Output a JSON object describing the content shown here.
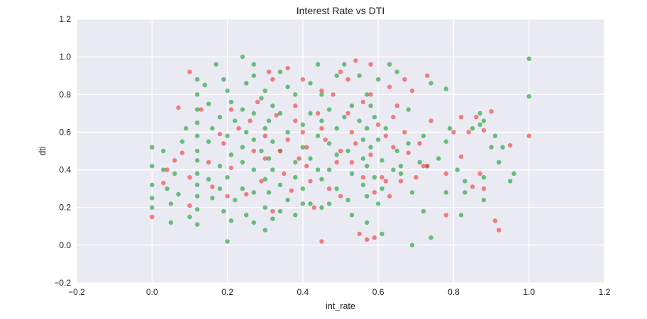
{
  "chart_data": {
    "type": "scatter",
    "title": "Interest Rate vs DTI",
    "xlabel": "int_rate",
    "ylabel": "dti",
    "xlim": [
      -0.2,
      1.2
    ],
    "ylim": [
      -0.2,
      1.2
    ],
    "xticks": [
      "−0.2",
      "0.0",
      "0.2",
      "0.4",
      "0.6",
      "0.8",
      "1.0",
      "1.2"
    ],
    "yticks": [
      "−0.2",
      "0.0",
      "0.2",
      "0.4",
      "0.6",
      "0.8",
      "1.0",
      "1.2"
    ],
    "grid": true,
    "legend": "none",
    "series": [
      {
        "color": "#22a23c",
        "points": [
          [
            0.0,
            0.52
          ],
          [
            0.0,
            0.42
          ],
          [
            0.0,
            0.32
          ],
          [
            0.0,
            0.25
          ],
          [
            0.0,
            0.2
          ],
          [
            0.03,
            0.5
          ],
          [
            0.03,
            0.4
          ],
          [
            0.04,
            0.3
          ],
          [
            0.05,
            0.22
          ],
          [
            0.05,
            0.12
          ],
          [
            0.06,
            0.38
          ],
          [
            0.07,
            0.27
          ],
          [
            0.08,
            0.55
          ],
          [
            0.09,
            0.62
          ],
          [
            0.1,
            0.15
          ],
          [
            0.12,
            0.88
          ],
          [
            0.12,
            0.8
          ],
          [
            0.12,
            0.72
          ],
          [
            0.12,
            0.65
          ],
          [
            0.12,
            0.58
          ],
          [
            0.12,
            0.5
          ],
          [
            0.12,
            0.45
          ],
          [
            0.12,
            0.38
          ],
          [
            0.12,
            0.32
          ],
          [
            0.12,
            0.26
          ],
          [
            0.12,
            0.19
          ],
          [
            0.12,
            0.11
          ],
          [
            0.14,
            0.85
          ],
          [
            0.15,
            0.75
          ],
          [
            0.15,
            0.55
          ],
          [
            0.15,
            0.35
          ],
          [
            0.16,
            0.62
          ],
          [
            0.16,
            0.25
          ],
          [
            0.17,
            0.96
          ],
          [
            0.18,
            0.68
          ],
          [
            0.18,
            0.42
          ],
          [
            0.18,
            0.3
          ],
          [
            0.19,
            0.88
          ],
          [
            0.19,
            0.18
          ],
          [
            0.2,
            0.82
          ],
          [
            0.2,
            0.58
          ],
          [
            0.2,
            0.36
          ],
          [
            0.2,
            0.02
          ],
          [
            0.21,
            0.76
          ],
          [
            0.21,
            0.48
          ],
          [
            0.21,
            0.13
          ],
          [
            0.22,
            0.66
          ],
          [
            0.22,
            0.24
          ],
          [
            0.24,
            1.0
          ],
          [
            0.24,
            0.72
          ],
          [
            0.24,
            0.52
          ],
          [
            0.24,
            0.44
          ],
          [
            0.24,
            0.3
          ],
          [
            0.25,
            0.86
          ],
          [
            0.25,
            0.6
          ],
          [
            0.25,
            0.16
          ],
          [
            0.27,
            0.96
          ],
          [
            0.27,
            0.9
          ],
          [
            0.27,
            0.7
          ],
          [
            0.27,
            0.56
          ],
          [
            0.27,
            0.4
          ],
          [
            0.27,
            0.28
          ],
          [
            0.27,
            0.12
          ],
          [
            0.29,
            0.78
          ],
          [
            0.29,
            0.5
          ],
          [
            0.3,
            0.82
          ],
          [
            0.3,
            0.62
          ],
          [
            0.3,
            0.35
          ],
          [
            0.3,
            0.2
          ],
          [
            0.3,
            0.08
          ],
          [
            0.31,
            0.66
          ],
          [
            0.31,
            0.46
          ],
          [
            0.31,
            0.28
          ],
          [
            0.32,
            0.74
          ],
          [
            0.32,
            0.55
          ],
          [
            0.32,
            0.4
          ],
          [
            0.32,
            0.14
          ],
          [
            0.34,
            0.92
          ],
          [
            0.34,
            0.7
          ],
          [
            0.34,
            0.5
          ],
          [
            0.34,
            0.32
          ],
          [
            0.34,
            0.18
          ],
          [
            0.36,
            0.84
          ],
          [
            0.36,
            0.6
          ],
          [
            0.36,
            0.24
          ],
          [
            0.38,
            0.8
          ],
          [
            0.38,
            0.44
          ],
          [
            0.38,
            0.36
          ],
          [
            0.38,
            0.16
          ],
          [
            0.4,
            0.64
          ],
          [
            0.4,
            0.52
          ],
          [
            0.4,
            0.3
          ],
          [
            0.4,
            0.22
          ],
          [
            0.42,
            0.86
          ],
          [
            0.42,
            0.7
          ],
          [
            0.42,
            0.46
          ],
          [
            0.42,
            0.22
          ],
          [
            0.44,
            0.96
          ],
          [
            0.44,
            0.58
          ],
          [
            0.44,
            0.4
          ],
          [
            0.45,
            0.8
          ],
          [
            0.45,
            0.66
          ],
          [
            0.45,
            0.35
          ],
          [
            0.45,
            0.2
          ],
          [
            0.47,
            0.72
          ],
          [
            0.47,
            0.54
          ],
          [
            0.47,
            0.4
          ],
          [
            0.47,
            0.22
          ],
          [
            0.49,
            0.9
          ],
          [
            0.49,
            0.62
          ],
          [
            0.49,
            0.48
          ],
          [
            0.49,
            0.3
          ],
          [
            0.51,
            0.96
          ],
          [
            0.51,
            0.68
          ],
          [
            0.52,
            0.5
          ],
          [
            0.52,
            0.24
          ],
          [
            0.53,
            0.74
          ],
          [
            0.53,
            0.38
          ],
          [
            0.53,
            0.16
          ],
          [
            0.55,
            0.9
          ],
          [
            0.55,
            0.66
          ],
          [
            0.56,
            0.56
          ],
          [
            0.56,
            0.46
          ],
          [
            0.56,
            0.32
          ],
          [
            0.57,
            0.8
          ],
          [
            0.57,
            0.62
          ],
          [
            0.57,
            0.42
          ],
          [
            0.57,
            0.26
          ],
          [
            0.57,
            0.12
          ],
          [
            0.58,
            0.74
          ],
          [
            0.58,
            0.52
          ],
          [
            0.59,
            0.68
          ],
          [
            0.59,
            0.36
          ],
          [
            0.6,
            0.88
          ],
          [
            0.6,
            0.56
          ],
          [
            0.6,
            0.22
          ],
          [
            0.61,
            0.45
          ],
          [
            0.61,
            0.3
          ],
          [
            0.61,
            0.06
          ],
          [
            0.62,
            0.62
          ],
          [
            0.63,
            0.96
          ],
          [
            0.64,
            0.4
          ],
          [
            0.65,
            0.92
          ],
          [
            0.65,
            0.5
          ],
          [
            0.66,
            0.42
          ],
          [
            0.66,
            0.38
          ],
          [
            0.68,
            0.72
          ],
          [
            0.68,
            0.54
          ],
          [
            0.69,
            0.28
          ],
          [
            0.69,
            0.0
          ],
          [
            0.71,
            0.44
          ],
          [
            0.72,
            0.58
          ],
          [
            0.72,
            0.18
          ],
          [
            0.73,
            0.42
          ],
          [
            0.74,
            0.86
          ],
          [
            0.74,
            0.04
          ],
          [
            0.76,
            0.46
          ],
          [
            0.78,
            0.83
          ],
          [
            0.78,
            0.55
          ],
          [
            0.78,
            0.28
          ],
          [
            0.79,
            0.62
          ],
          [
            0.81,
            0.4
          ],
          [
            0.82,
            0.16
          ],
          [
            0.83,
            0.34
          ],
          [
            0.83,
            0.28
          ],
          [
            0.85,
            0.62
          ],
          [
            0.87,
            0.7
          ],
          [
            0.87,
            0.64
          ],
          [
            0.88,
            0.66
          ],
          [
            0.88,
            0.36
          ],
          [
            0.88,
            0.24
          ],
          [
            0.9,
            0.52
          ],
          [
            0.91,
            0.58
          ],
          [
            0.92,
            0.44
          ],
          [
            0.93,
            0.52
          ],
          [
            0.95,
            0.34
          ],
          [
            0.96,
            0.38
          ],
          [
            1.0,
            0.99
          ],
          [
            1.0,
            0.79
          ]
        ]
      },
      {
        "color": "#f04040",
        "points": [
          [
            0.0,
            0.15
          ],
          [
            0.03,
            0.33
          ],
          [
            0.04,
            0.4
          ],
          [
            0.06,
            0.45
          ],
          [
            0.07,
            0.73
          ],
          [
            0.08,
            0.49
          ],
          [
            0.1,
            0.36
          ],
          [
            0.1,
            0.21
          ],
          [
            0.1,
            0.92
          ],
          [
            0.13,
            0.72
          ],
          [
            0.15,
            0.44
          ],
          [
            0.16,
            0.31
          ],
          [
            0.18,
            0.59
          ],
          [
            0.19,
            0.54
          ],
          [
            0.2,
            0.26
          ],
          [
            0.21,
            0.72
          ],
          [
            0.21,
            0.41
          ],
          [
            0.23,
            0.62
          ],
          [
            0.25,
            0.27
          ],
          [
            0.26,
            0.66
          ],
          [
            0.27,
            0.5
          ],
          [
            0.28,
            0.76
          ],
          [
            0.29,
            0.34
          ],
          [
            0.3,
            0.46
          ],
          [
            0.3,
            0.58
          ],
          [
            0.31,
            0.92
          ],
          [
            0.32,
            0.88
          ],
          [
            0.32,
            0.18
          ],
          [
            0.33,
            0.69
          ],
          [
            0.34,
            0.5
          ],
          [
            0.35,
            0.38
          ],
          [
            0.36,
            0.94
          ],
          [
            0.36,
            0.56
          ],
          [
            0.37,
            0.29
          ],
          [
            0.38,
            0.74
          ],
          [
            0.38,
            0.66
          ],
          [
            0.39,
            0.46
          ],
          [
            0.4,
            0.88
          ],
          [
            0.4,
            0.6
          ],
          [
            0.41,
            0.52
          ],
          [
            0.41,
            0.42
          ],
          [
            0.42,
            0.34
          ],
          [
            0.43,
            0.2
          ],
          [
            0.44,
            0.7
          ],
          [
            0.45,
            0.82
          ],
          [
            0.45,
            0.62
          ],
          [
            0.45,
            0.02
          ],
          [
            0.46,
            0.56
          ],
          [
            0.47,
            0.3
          ],
          [
            0.48,
            0.8
          ],
          [
            0.49,
            0.44
          ],
          [
            0.5,
            0.92
          ],
          [
            0.5,
            0.5
          ],
          [
            0.5,
            0.26
          ],
          [
            0.52,
            0.88
          ],
          [
            0.52,
            0.7
          ],
          [
            0.53,
            0.6
          ],
          [
            0.53,
            0.44
          ],
          [
            0.54,
            0.98
          ],
          [
            0.54,
            0.54
          ],
          [
            0.55,
            0.06
          ],
          [
            0.56,
            0.76
          ],
          [
            0.56,
            0.36
          ],
          [
            0.57,
            0.03
          ],
          [
            0.58,
            0.96
          ],
          [
            0.58,
            0.8
          ],
          [
            0.58,
            0.48
          ],
          [
            0.59,
            0.28
          ],
          [
            0.59,
            0.04
          ],
          [
            0.6,
            0.64
          ],
          [
            0.61,
            0.36
          ],
          [
            0.62,
            0.58
          ],
          [
            0.62,
            0.34
          ],
          [
            0.63,
            0.84
          ],
          [
            0.63,
            0.26
          ],
          [
            0.64,
            0.68
          ],
          [
            0.64,
            0.52
          ],
          [
            0.65,
            0.74
          ],
          [
            0.66,
            0.34
          ],
          [
            0.67,
            0.88
          ],
          [
            0.67,
            0.6
          ],
          [
            0.68,
            0.49
          ],
          [
            0.69,
            0.82
          ],
          [
            0.7,
            0.36
          ],
          [
            0.71,
            0.54
          ],
          [
            0.72,
            0.42
          ],
          [
            0.73,
            0.9
          ],
          [
            0.73,
            0.42
          ],
          [
            0.74,
            0.66
          ],
          [
            0.78,
            0.38
          ],
          [
            0.78,
            0.16
          ],
          [
            0.8,
            0.6
          ],
          [
            0.82,
            0.68
          ],
          [
            0.82,
            0.47
          ],
          [
            0.84,
            0.6
          ],
          [
            0.85,
            0.31
          ],
          [
            0.86,
            0.68
          ],
          [
            0.87,
            0.38
          ],
          [
            0.88,
            0.61
          ],
          [
            0.88,
            0.3
          ],
          [
            0.9,
            0.71
          ],
          [
            0.91,
            0.13
          ],
          [
            0.92,
            0.08
          ],
          [
            0.95,
            0.53
          ],
          [
            1.0,
            0.58
          ]
        ]
      }
    ]
  }
}
